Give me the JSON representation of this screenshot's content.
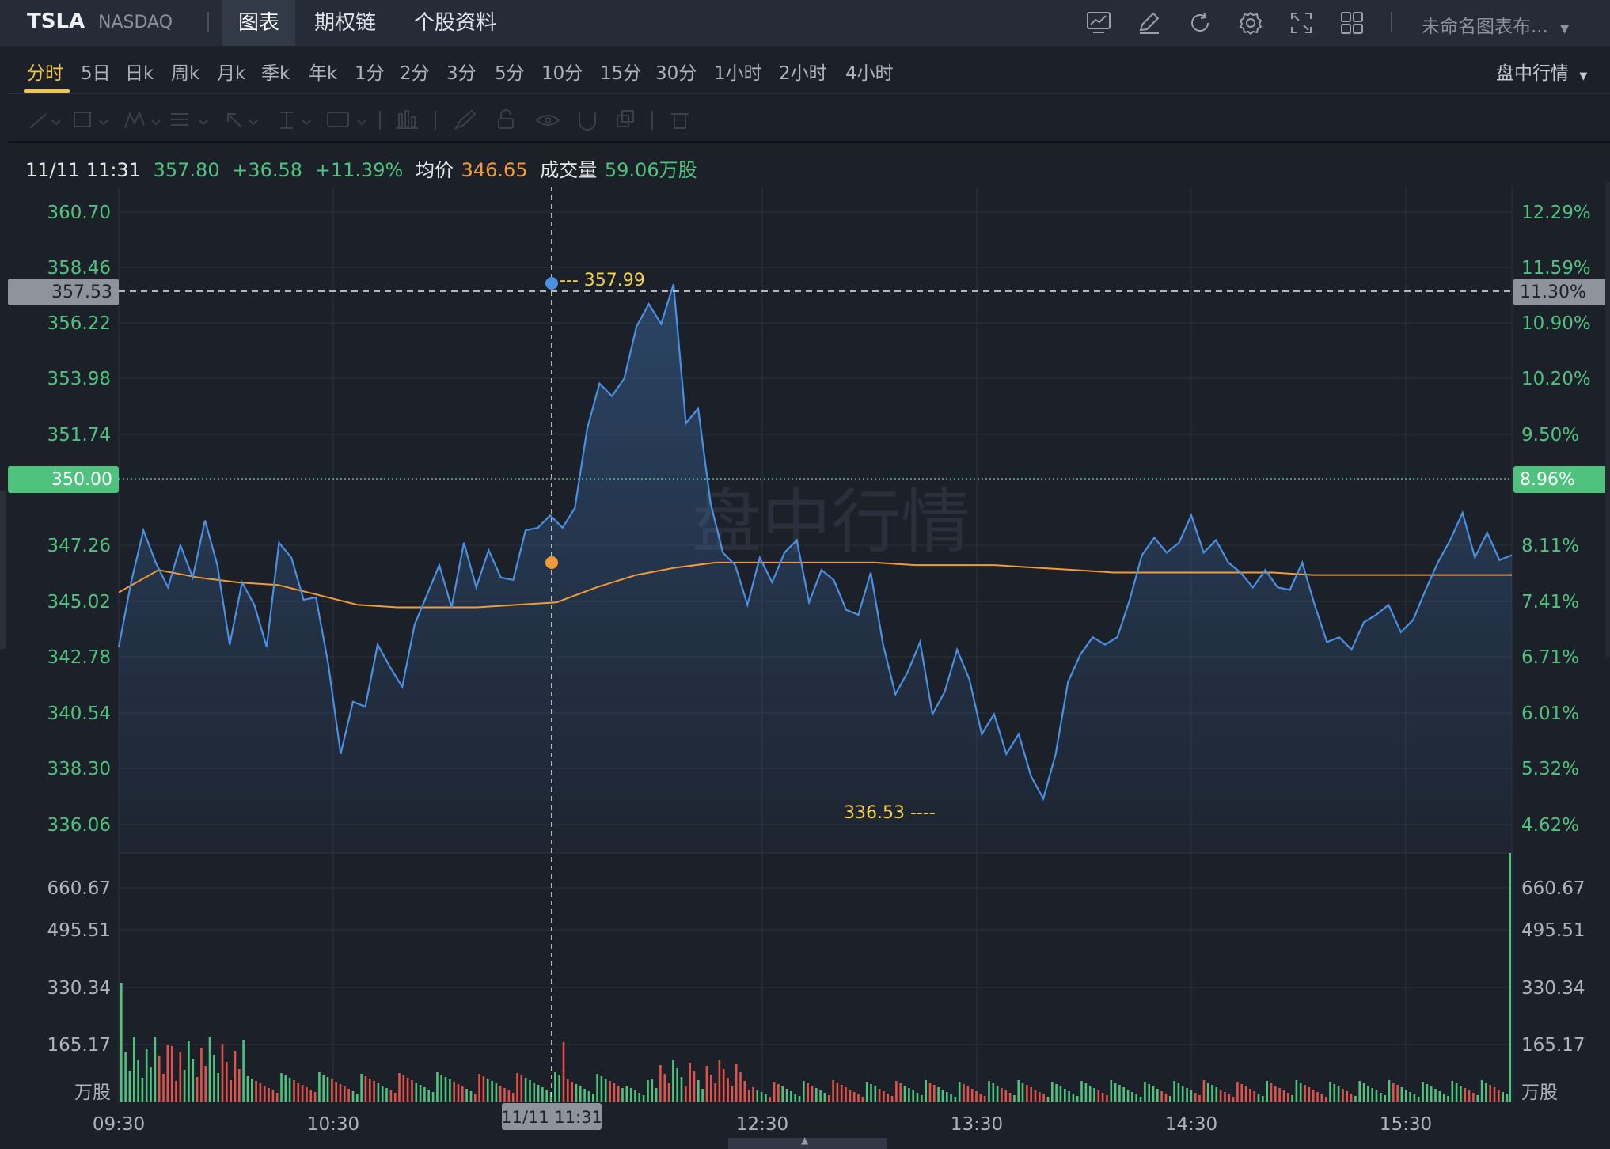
{
  "header": {
    "ticker": "TSLA",
    "exchange": "NASDAQ",
    "tabs": [
      "图表",
      "期权链",
      "个股资料"
    ],
    "active_tab": "图表",
    "layout_name": "未命名图表布...",
    "toolbar_icons": [
      "indicator-chart-icon",
      "draw-pencil-icon",
      "refresh-icon",
      "settings-gear-icon",
      "fullscreen-icon",
      "grid-layout-icon"
    ]
  },
  "periods": {
    "items": [
      "分时",
      "5日",
      "日k",
      "周k",
      "月k",
      "季k",
      "年k",
      "1分",
      "2分",
      "3分",
      "5分",
      "10分",
      "15分",
      "30分",
      "1小时",
      "2小时",
      "4小时"
    ],
    "active": "分时",
    "market_mode": "盘中行情"
  },
  "drawing_tools": [
    "line-tool-icon",
    "rectangle-tool-icon",
    "pattern-tool-icon",
    "fib-tool-icon",
    "arrow-tool-icon",
    "text-cursor-tool-icon",
    "annotation-tool-icon",
    "volume-profile-icon",
    "brush-icon",
    "lock-icon",
    "eye-icon",
    "magnet-icon",
    "clone-icon",
    "trash-icon"
  ],
  "info": {
    "datetime": "11/11 11:31",
    "price": "357.80",
    "change": "+36.58",
    "change_pct": "+11.39%",
    "avg_label": "均价",
    "avg_value": "346.65",
    "volume_label": "成交量",
    "volume_value": "59.06",
    "volume_unit": "万股"
  },
  "watermark": "盘中行情",
  "colors": {
    "up": "#4fc37e",
    "down": "#e0524a",
    "price_line": "#4a90e2",
    "avg_line": "#f29b38",
    "annotation": "#f3d247",
    "background": "#1c2029"
  },
  "chart_data": {
    "type": "line",
    "x_ticks": [
      "09:30",
      "10:30",
      "12:30",
      "13:30",
      "14:30",
      "15:30"
    ],
    "price_ticks_left": [
      "360.70",
      "358.46",
      "356.22",
      "353.98",
      "351.74",
      "347.26",
      "345.02",
      "342.78",
      "340.54",
      "338.30",
      "336.06"
    ],
    "pct_ticks_right": [
      "12.29%",
      "11.59%",
      "10.90%",
      "10.20%",
      "9.50%",
      "8.11%",
      "7.41%",
      "6.71%",
      "6.01%",
      "5.32%",
      "4.62%"
    ],
    "volume_ticks": [
      "660.67",
      "495.51",
      "330.34",
      "165.17"
    ],
    "volume_unit": "万股",
    "ylim": [
      335.2,
      361.7
    ],
    "reference_price": "350.00",
    "reference_pct": "8.96%",
    "crosshair_price": "357.53",
    "crosshair_pct": "11.30%",
    "crosshair_time": "11/11 11:31",
    "high_label": "357.99",
    "low_label": "336.53",
    "price_series": [
      343.2,
      345.8,
      347.9,
      346.6,
      345.6,
      347.3,
      346.0,
      348.3,
      346.5,
      343.3,
      345.8,
      344.9,
      343.2,
      347.4,
      346.8,
      345.1,
      345.2,
      342.5,
      338.9,
      341.0,
      340.8,
      343.3,
      342.4,
      341.6,
      344.1,
      345.3,
      346.5,
      344.8,
      347.4,
      345.6,
      347.1,
      346.0,
      345.9,
      347.9,
      348.0,
      348.5,
      348.0,
      348.8,
      352.0,
      353.8,
      353.3,
      354.0,
      356.1,
      357.0,
      356.2,
      357.8,
      352.2,
      352.8,
      349.0,
      347.0,
      346.5,
      344.9,
      346.8,
      345.8,
      347.0,
      347.5,
      345.0,
      346.3,
      345.9,
      344.7,
      344.5,
      346.2,
      343.3,
      341.3,
      342.2,
      343.4,
      340.5,
      341.4,
      343.1,
      341.9,
      339.7,
      340.5,
      338.9,
      339.7,
      338.0,
      337.1,
      338.9,
      341.8,
      342.9,
      343.6,
      343.3,
      343.6,
      345.1,
      346.9,
      347.6,
      347.0,
      347.4,
      348.5,
      347.0,
      347.5,
      346.6,
      346.2,
      345.6,
      346.3,
      345.6,
      345.5,
      346.6,
      344.9,
      343.4,
      343.6,
      343.1,
      344.2,
      344.5,
      344.9,
      343.8,
      344.3,
      345.5,
      346.6,
      347.5,
      348.6,
      346.8,
      347.8,
      346.7,
      346.9
    ],
    "avg_series": [
      345.4,
      346.3,
      346.0,
      345.8,
      345.7,
      345.3,
      344.9,
      344.8,
      344.8,
      344.8,
      344.9,
      345.0,
      345.6,
      346.1,
      346.4,
      346.6,
      346.6,
      346.6,
      346.6,
      346.6,
      346.5,
      346.5,
      346.5,
      346.4,
      346.3,
      346.2,
      346.2,
      346.2,
      346.2,
      346.2,
      346.1,
      346.1,
      346.1,
      346.1,
      346.1,
      346.1
    ],
    "volume_note": "intraday volume bars, red = down minute, green = up minute"
  }
}
